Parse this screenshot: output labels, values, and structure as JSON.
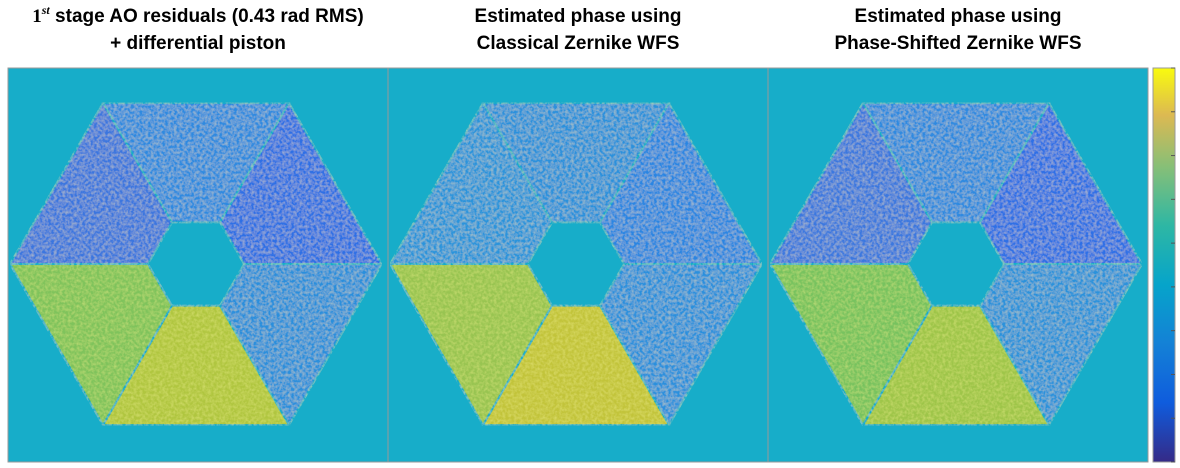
{
  "panels": [
    {
      "title": {
        "ordinal": "1",
        "superscript": "st",
        "line1": " stage AO residuals (0.43 rad RMS)",
        "line2": "+ differential piston"
      }
    },
    {
      "title": {
        "line1": "Estimated phase using",
        "line2": "Classical Zernike WFS"
      }
    },
    {
      "title": {
        "line1": "Estimated phase using",
        "line2": "Phase-Shifted Zernike WFS"
      }
    }
  ]
}
